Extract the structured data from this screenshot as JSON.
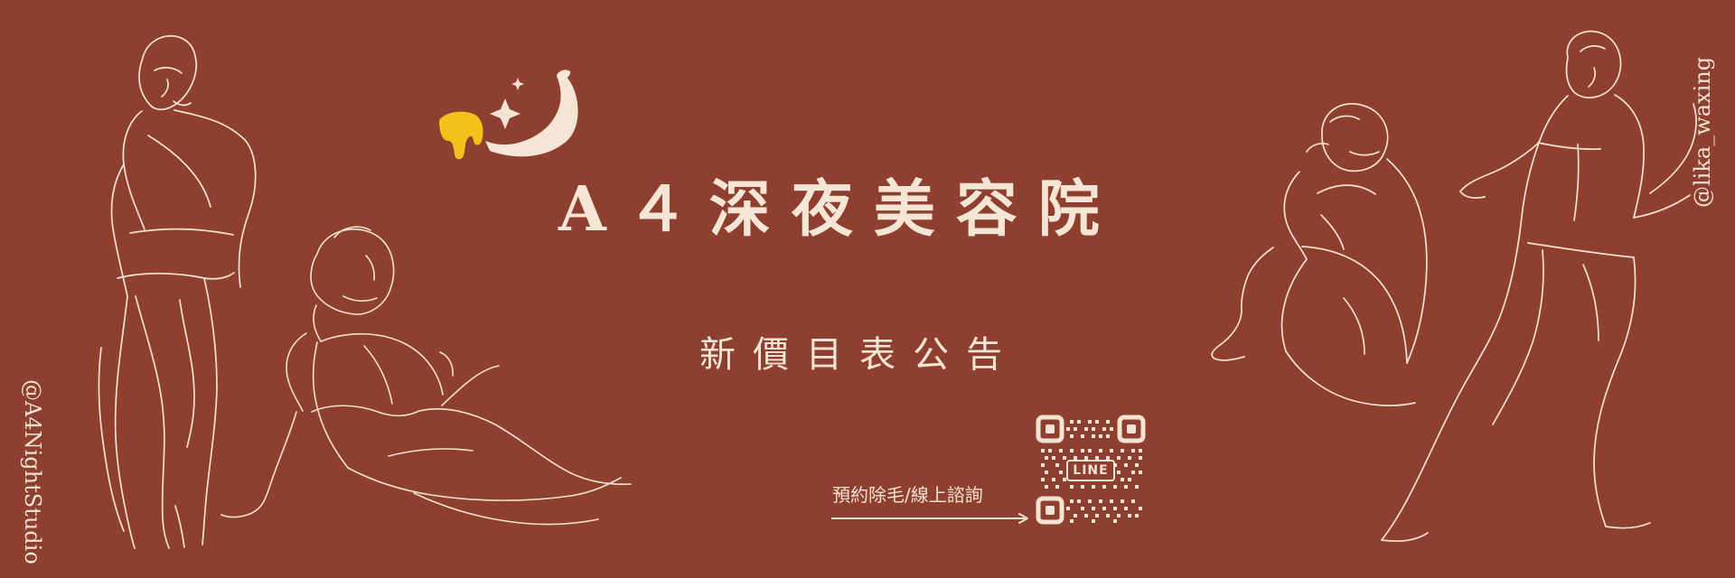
{
  "brand": {
    "title": "A４深夜美容院",
    "subtitle": "新價目表公告"
  },
  "handles": {
    "left": "@A4NightStudio",
    "right": "@lika_waxing"
  },
  "booking": {
    "label": "預約除毛/線上諮詢",
    "qr_badge": "LINE"
  },
  "colors": {
    "background": "#8f3f30",
    "text": "#f3e3d2",
    "banana": "#f4e5d4",
    "honey": "#f2c21b"
  },
  "icons": {
    "logo": "banana-honey-icon",
    "arrow": "arrow-right-icon",
    "qr": "qr-code-icon"
  }
}
